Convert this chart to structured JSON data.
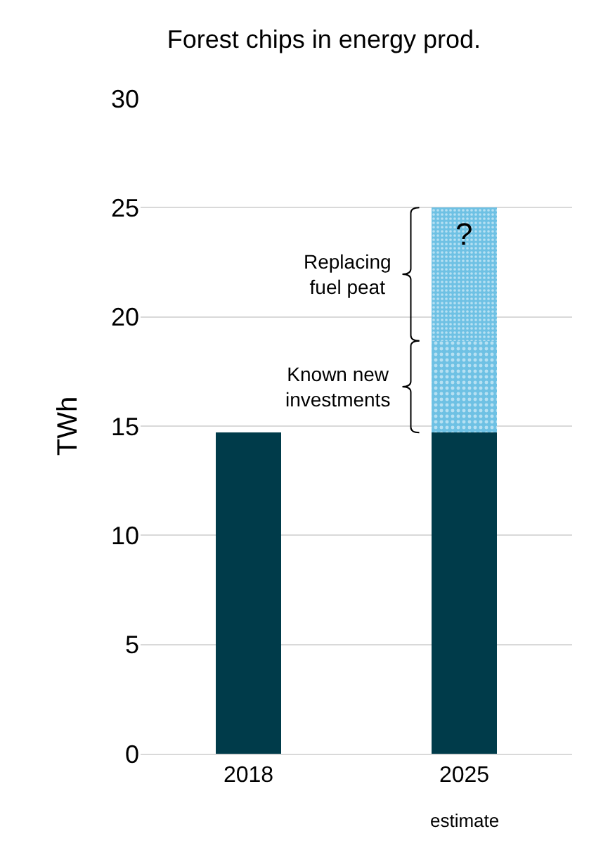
{
  "chart_data": {
    "type": "bar",
    "title": "Forest chips in energy prod.",
    "ylabel": "TWh",
    "categories": [
      "2018",
      "2025"
    ],
    "stacked": true,
    "series": [
      {
        "color": "#003b4a",
        "values": [
          14.7,
          14.7
        ]
      },
      {
        "color": "#6ec1e4",
        "values": [
          null,
          4.2
        ]
      },
      {
        "color": "#6ec1e4",
        "values": [
          null,
          6.1
        ]
      }
    ],
    "ylim": [
      0,
      30
    ],
    "yticks": [
      0,
      5,
      10,
      15,
      20,
      25,
      30
    ],
    "grid": "y",
    "legend": false,
    "annotations": [
      "Known new\ninvestments",
      "Replacing\nfuel peat",
      "?",
      "estimate"
    ]
  }
}
